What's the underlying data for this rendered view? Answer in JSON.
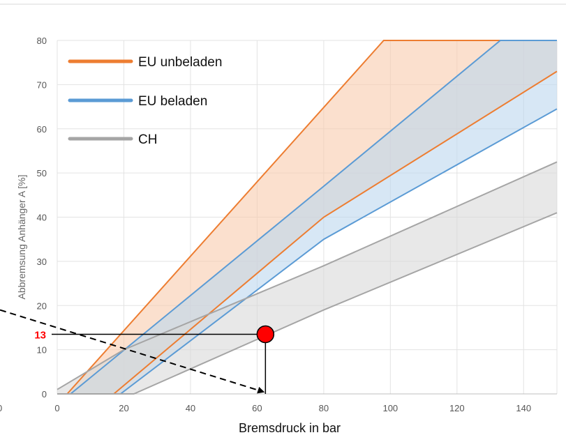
{
  "chart_data": {
    "type": "area",
    "xlabel": "Bremsdruck in bar",
    "ylabel": "Abbremsung Anhänger A [%]",
    "xlim": [
      0,
      150
    ],
    "ylim": [
      0,
      80
    ],
    "x_ticks": [
      "0",
      "20",
      "40",
      "60",
      "80",
      "100",
      "120",
      "140"
    ],
    "y_ticks": [
      "0",
      "10",
      "20",
      "30",
      "40",
      "50",
      "60",
      "70",
      "80"
    ],
    "left_axis_label": "0",
    "grid": true,
    "legend_position": "top-left",
    "series": [
      {
        "name": "EU unbeladen",
        "color": "#ED7D31",
        "fill": "#F8CBAD",
        "upper": [
          [
            0,
            0
          ],
          [
            3,
            0
          ],
          [
            98,
            80
          ],
          [
            150,
            80
          ]
        ],
        "lower": [
          [
            0,
            0
          ],
          [
            17,
            0
          ],
          [
            80,
            40
          ],
          [
            150,
            73
          ]
        ]
      },
      {
        "name": "EU beladen",
        "color": "#5B9BD5",
        "fill": "#BDD7EE",
        "upper": [
          [
            0,
            0
          ],
          [
            4,
            0
          ],
          [
            80,
            47
          ],
          [
            133,
            80
          ],
          [
            150,
            80
          ]
        ],
        "lower": [
          [
            0,
            0
          ],
          [
            19,
            0
          ],
          [
            80,
            35
          ],
          [
            150,
            64.5
          ]
        ]
      },
      {
        "name": "CH",
        "color": "#A5A5A5",
        "fill": "#D9D9D9",
        "upper": [
          [
            0,
            1
          ],
          [
            20,
            10
          ],
          [
            80,
            29
          ],
          [
            150,
            52.5
          ]
        ],
        "lower": [
          [
            0,
            0
          ],
          [
            23,
            0
          ],
          [
            80,
            19
          ],
          [
            150,
            41
          ]
        ]
      }
    ],
    "annotation": {
      "point": [
        62.5,
        13.5
      ],
      "value_label": "13",
      "marker_color": "#FF0000",
      "label_color": "#FF0000"
    }
  }
}
